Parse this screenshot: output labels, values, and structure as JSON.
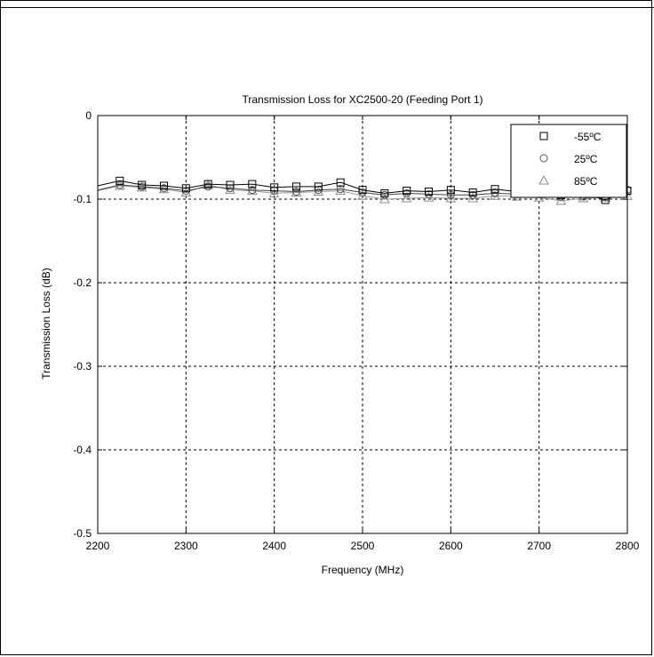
{
  "chart_data": {
    "type": "line",
    "title": "Transmission Loss for XC2500-20 (Feeding Port 1)",
    "xlabel": "Frequency (MHz)",
    "ylabel": "Transmission Loss (dB)",
    "xlim": [
      2200,
      2800
    ],
    "ylim": [
      -0.5,
      0
    ],
    "xticks": [
      2200,
      2300,
      2400,
      2500,
      2600,
      2700,
      2800
    ],
    "yticks": [
      0,
      -0.1,
      -0.2,
      -0.3,
      -0.4,
      -0.5
    ],
    "xtick_labels": [
      "2200",
      "2300",
      "2400",
      "2500",
      "2600",
      "2700",
      "2800"
    ],
    "ytick_labels": [
      "0",
      "-0.1",
      "-0.2",
      "-0.3",
      "-0.4",
      "-0.5"
    ],
    "grid": true,
    "legend_position": "top-right",
    "marker_x": [
      2225,
      2250,
      2275,
      2300,
      2325,
      2350,
      2375,
      2400,
      2425,
      2450,
      2475,
      2500,
      2525,
      2550,
      2575,
      2600,
      2625,
      2650,
      2675,
      2700,
      2725,
      2750,
      2775,
      2800
    ],
    "series": [
      {
        "name": "-55ºC",
        "marker": "square",
        "values": [
          -0.078,
          -0.083,
          -0.084,
          -0.087,
          -0.082,
          -0.083,
          -0.082,
          -0.086,
          -0.085,
          -0.085,
          -0.08,
          -0.089,
          -0.093,
          -0.09,
          -0.091,
          -0.089,
          -0.092,
          -0.088,
          -0.091,
          -0.093,
          -0.095,
          -0.093,
          -0.101,
          -0.09
        ]
      },
      {
        "name": "25ºC",
        "marker": "circle",
        "values": [
          -0.083,
          -0.085,
          -0.087,
          -0.09,
          -0.085,
          -0.087,
          -0.089,
          -0.09,
          -0.091,
          -0.089,
          -0.088,
          -0.092,
          -0.095,
          -0.093,
          -0.094,
          -0.095,
          -0.095,
          -0.093,
          -0.094,
          -0.094,
          -0.097,
          -0.097,
          -0.098,
          -0.089
        ]
      },
      {
        "name": "85ºC",
        "marker": "triangle",
        "values": [
          -0.084,
          -0.086,
          -0.088,
          -0.092,
          -0.083,
          -0.089,
          -0.09,
          -0.093,
          -0.092,
          -0.091,
          -0.09,
          -0.096,
          -0.1,
          -0.099,
          -0.098,
          -0.099,
          -0.099,
          -0.096,
          -0.097,
          -0.098,
          -0.102,
          -0.099,
          -0.098,
          -0.096
        ]
      }
    ]
  }
}
